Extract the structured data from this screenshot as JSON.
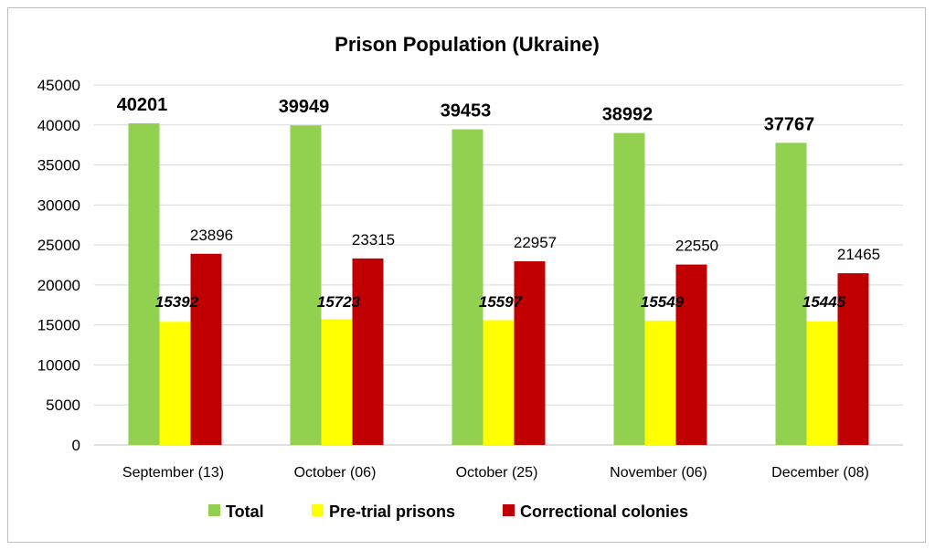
{
  "chart_data": {
    "type": "bar",
    "title": "Prison Population (Ukraine)",
    "categories": [
      "September (13)",
      "October (06)",
      "October  (25)",
      "November (06)",
      "December (08)"
    ],
    "series": [
      {
        "name": "Total",
        "color": "#92d050",
        "values": [
          40201,
          39949,
          39453,
          38992,
          37767
        ]
      },
      {
        "name": "Pre-trial prisons",
        "color": "#ffff00",
        "values": [
          15392,
          15723,
          15597,
          15549,
          15445
        ]
      },
      {
        "name": "Correctional colonies",
        "color": "#c00000",
        "values": [
          23896,
          23315,
          22957,
          22550,
          21465
        ]
      }
    ],
    "ylim": [
      0,
      45000
    ],
    "yticks": [
      0,
      5000,
      10000,
      15000,
      20000,
      25000,
      30000,
      35000,
      40000,
      45000
    ],
    "grid": true,
    "legend_position": "bottom"
  }
}
